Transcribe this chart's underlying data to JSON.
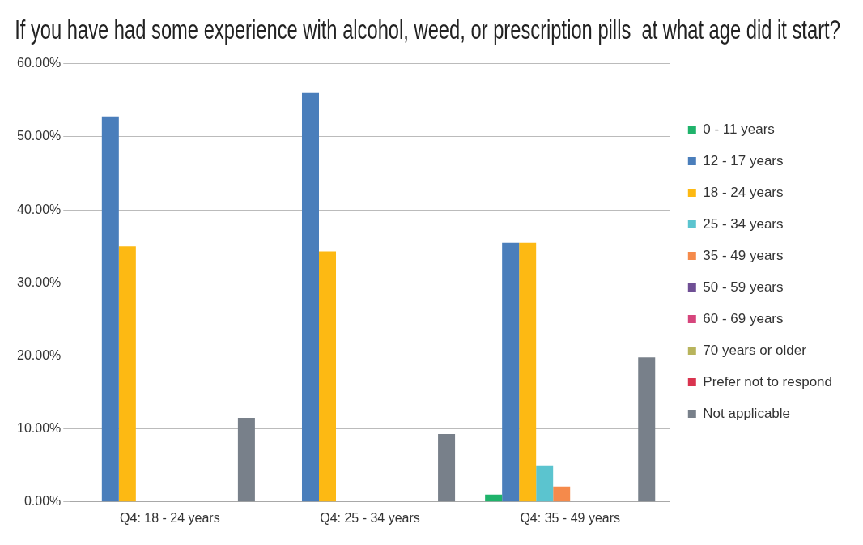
{
  "chart_data": {
    "type": "bar",
    "title": "If you have had some experience with alcohol, weed, or prescription pills  at what age did it start?",
    "categories": [
      "Q4: 18 - 24 years",
      "Q4: 25 - 34 years",
      "Q4: 35 - 49 years"
    ],
    "series": [
      {
        "name": "0 - 11 years",
        "color": "#1fb36b",
        "values": [
          0,
          0,
          1.0
        ]
      },
      {
        "name": "12 - 17 years",
        "color": "#4a7ebb",
        "values": [
          52.8,
          56.0,
          35.5
        ]
      },
      {
        "name": "18 - 24 years",
        "color": "#fdb913",
        "values": [
          35.0,
          34.3,
          35.5
        ]
      },
      {
        "name": "25 - 34 years",
        "color": "#5bc4cf",
        "values": [
          0,
          0,
          5.0
        ]
      },
      {
        "name": "35 - 49 years",
        "color": "#f58a4b",
        "values": [
          0,
          0,
          2.1
        ]
      },
      {
        "name": "50 - 59 years",
        "color": "#6f4f95",
        "values": [
          0,
          0,
          0
        ]
      },
      {
        "name": "60 - 69 years",
        "color": "#d6457c",
        "values": [
          0,
          0,
          0
        ]
      },
      {
        "name": "70 years or older",
        "color": "#b8b45c",
        "values": [
          0,
          0,
          0
        ]
      },
      {
        "name": "Prefer not to respond",
        "color": "#d9344f",
        "values": [
          0,
          0,
          0
        ]
      },
      {
        "name": "Not applicable",
        "color": "#78808a",
        "values": [
          11.5,
          9.3,
          19.8
        ]
      }
    ],
    "ylim": [
      0,
      60
    ],
    "yticks": [
      {
        "value": 0,
        "label": "0.00%"
      },
      {
        "value": 10,
        "label": "10.00%"
      },
      {
        "value": 20,
        "label": "20.00%"
      },
      {
        "value": 30,
        "label": "30.00%"
      },
      {
        "value": 40,
        "label": "40.00%"
      },
      {
        "value": 50,
        "label": "50.00%"
      },
      {
        "value": 60,
        "label": "60.00%"
      }
    ],
    "grid": "y",
    "legend": "right"
  }
}
